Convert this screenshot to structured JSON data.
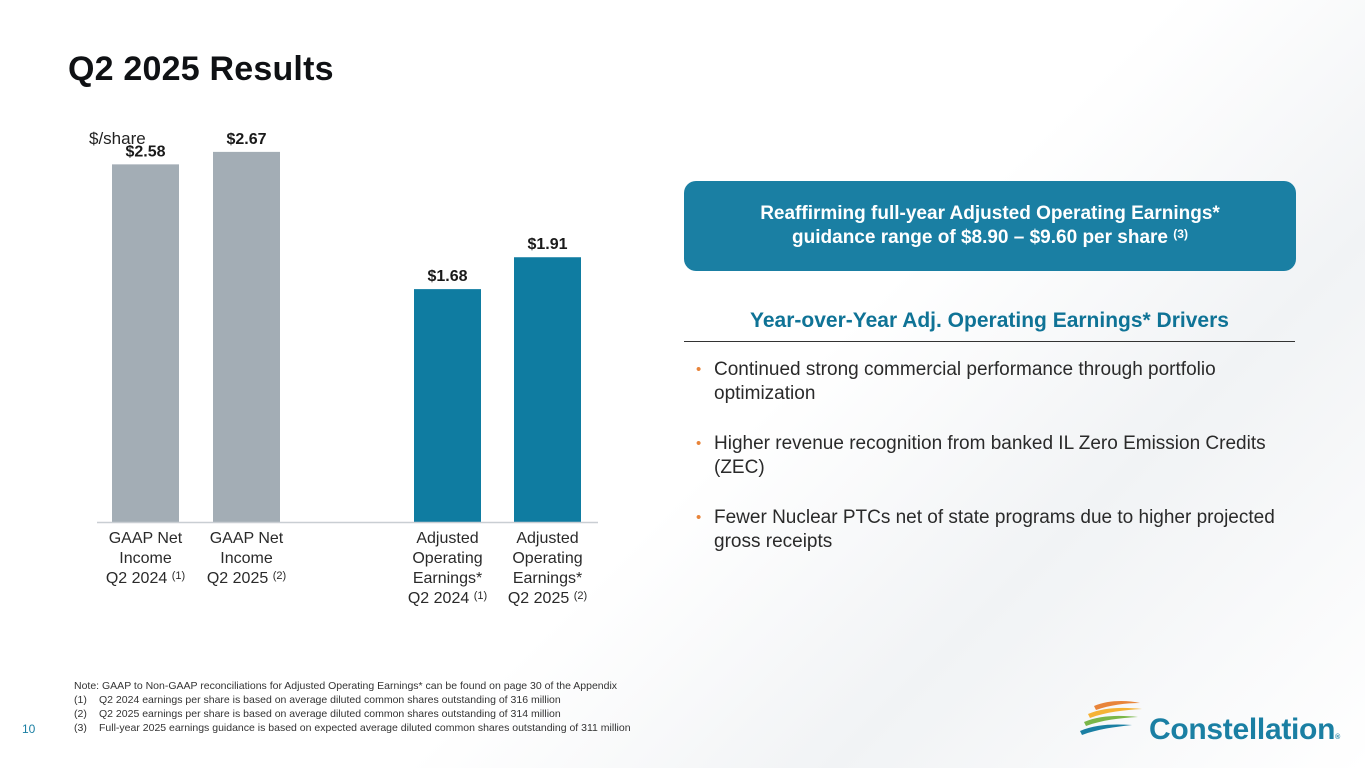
{
  "page": {
    "title": "Q2 2025 Results",
    "page_number": "10"
  },
  "chart_data": {
    "type": "bar",
    "unit_label": "$/share",
    "categories": [
      {
        "lines": [
          "GAAP Net",
          "Income",
          "Q2 2024"
        ],
        "footnote": "(1)"
      },
      {
        "lines": [
          "GAAP Net",
          "Income",
          "Q2 2025"
        ],
        "footnote": "(2)"
      },
      {
        "lines": [
          "Adjusted",
          "Operating",
          "Earnings*",
          "Q2 2024"
        ],
        "footnote": "(1)"
      },
      {
        "lines": [
          "Adjusted",
          "Operating",
          "Earnings*",
          "Q2 2025"
        ],
        "footnote": "(2)"
      }
    ],
    "values": [
      2.58,
      2.67,
      1.68,
      1.91
    ],
    "value_labels": [
      "$2.58",
      "$2.67",
      "$1.68",
      "$1.91"
    ],
    "colors": [
      "#a3adb5",
      "#a3adb5",
      "#0f7ca1",
      "#0f7ca1"
    ],
    "ylim": [
      0,
      2.9
    ],
    "grid": false
  },
  "callout": {
    "line1": "Reaffirming full-year Adjusted Operating Earnings*",
    "line2": "guidance range of $8.90 – $9.60 per share",
    "footnote": "(3)"
  },
  "drivers": {
    "title": "Year-over-Year Adj. Operating Earnings* Drivers",
    "bullet_glyph": "•",
    "items": [
      "Continued strong commercial performance through portfolio optimization",
      "Higher revenue recognition from banked IL Zero Emission Credits (ZEC)",
      "Fewer Nuclear PTCs net of state programs due to higher projected gross receipts"
    ]
  },
  "notes": {
    "header": "Note: GAAP to Non-GAAP reconciliations for Adjusted Operating Earnings* can be found on page 30 of the Appendix",
    "items": [
      {
        "num": "(1)",
        "text": "Q2 2024 earnings per share is based on average diluted common shares outstanding of 316 million"
      },
      {
        "num": "(2)",
        "text": "Q2 2025 earnings per share is based on average diluted common shares outstanding of 314 million"
      },
      {
        "num": "(3)",
        "text": "Full-year 2025 earnings guidance is based on expected average diluted common shares outstanding of 311 million"
      }
    ]
  },
  "logo": {
    "text": "Constellation",
    "reg": "®",
    "icon": "constellation-swoosh-icon",
    "colors": [
      "#e8843a",
      "#f5b335",
      "#7ab648",
      "#1a7fa3"
    ]
  }
}
